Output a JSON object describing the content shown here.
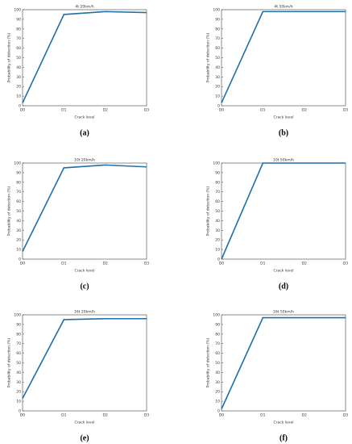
{
  "chart_data": [
    {
      "type": "line",
      "title": "4t 20km/h",
      "caption": "(a)",
      "xlabel": "Crack level",
      "ylabel": "Probability of detection (%)",
      "categories": [
        "D0",
        "D1",
        "D2",
        "D3"
      ],
      "series": [
        {
          "color": "#1f6fa8",
          "values": [
            3,
            95,
            98,
            97
          ]
        }
      ],
      "ylim": [
        0,
        100
      ],
      "yticks": [
        0,
        10,
        20,
        30,
        40,
        50,
        60,
        70,
        80,
        90,
        100
      ]
    },
    {
      "type": "line",
      "title": "4t 50km/h",
      "caption": "(b)",
      "xlabel": "Crack level",
      "ylabel": "Probability of detection (%)",
      "categories": [
        "D0",
        "D1",
        "D2",
        "D3"
      ],
      "series": [
        {
          "color": "#1f6fa8",
          "values": [
            3,
            98,
            98,
            98
          ]
        }
      ],
      "ylim": [
        0,
        100
      ],
      "yticks": [
        0,
        10,
        20,
        30,
        40,
        50,
        60,
        70,
        80,
        90,
        100
      ]
    },
    {
      "type": "line",
      "title": "10t 20km/h",
      "caption": "(c)",
      "xlabel": "Crack level",
      "ylabel": "Probability of detection (%)",
      "categories": [
        "D0",
        "D1",
        "D2",
        "D3"
      ],
      "series": [
        {
          "color": "#1f6fa8",
          "values": [
            8,
            95,
            98,
            96
          ]
        }
      ],
      "ylim": [
        0,
        100
      ],
      "yticks": [
        0,
        10,
        20,
        30,
        40,
        50,
        60,
        70,
        80,
        90,
        100
      ]
    },
    {
      "type": "line",
      "title": "10t 50km/h",
      "caption": "(d)",
      "xlabel": "Crack level",
      "ylabel": "Probability of detection (%)",
      "categories": [
        "D0",
        "D1",
        "D2",
        "D3"
      ],
      "series": [
        {
          "color": "#1f6fa8",
          "values": [
            0,
            100,
            100,
            100
          ]
        }
      ],
      "ylim": [
        0,
        100
      ],
      "yticks": [
        0,
        10,
        20,
        30,
        40,
        50,
        60,
        70,
        80,
        90,
        100
      ]
    },
    {
      "type": "line",
      "title": "16t 20km/h",
      "caption": "(e)",
      "xlabel": "Crack level",
      "ylabel": "Probability of detection (%)",
      "categories": [
        "D0",
        "D1",
        "D2",
        "D3"
      ],
      "series": [
        {
          "color": "#1f6fa8",
          "values": [
            13,
            95,
            96,
            96
          ]
        }
      ],
      "ylim": [
        0,
        100
      ],
      "yticks": [
        0,
        10,
        20,
        30,
        40,
        50,
        60,
        70,
        80,
        90,
        100
      ]
    },
    {
      "type": "line",
      "title": "16t 50km/h",
      "caption": "(f)",
      "xlabel": "Crack level",
      "ylabel": "Probability of detection (%)",
      "categories": [
        "D0",
        "D1",
        "D2",
        "D3"
      ],
      "series": [
        {
          "color": "#1f6fa8",
          "values": [
            2,
            97,
            97,
            97
          ]
        }
      ],
      "ylim": [
        0,
        100
      ],
      "yticks": [
        0,
        10,
        20,
        30,
        40,
        50,
        60,
        70,
        80,
        90,
        100
      ]
    }
  ]
}
